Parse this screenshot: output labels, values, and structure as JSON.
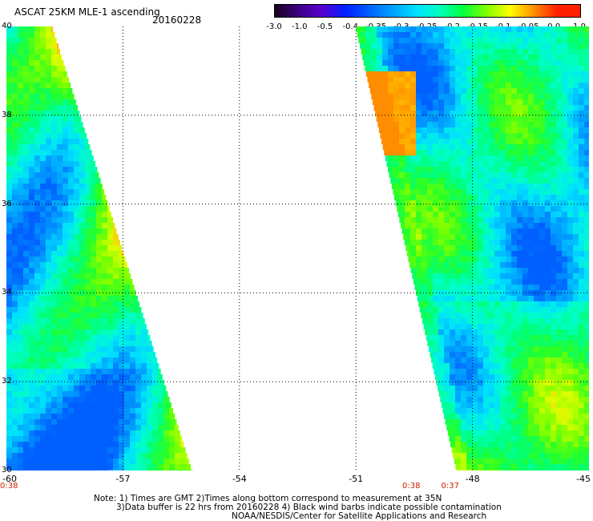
{
  "header": {
    "title": "ASCAT 25KM MLE-1 ascending",
    "date": "20160228"
  },
  "colorbar": {
    "ticks": [
      "-3.0",
      "-1.0",
      "-0.5",
      "-0.4",
      "-0.35",
      "-0.3",
      "-0.25",
      "-0.2",
      "-0.15",
      "-0.1",
      "-0.05",
      "0.0",
      "1.0"
    ],
    "colors": [
      "#1a0020",
      "#3a0080",
      "#5a00d0",
      "#0020ff",
      "#0060ff",
      "#00a0ff",
      "#00e0ff",
      "#00ffc0",
      "#00ff40",
      "#80ff00",
      "#ffff00",
      "#ff9000",
      "#ff2000"
    ]
  },
  "map": {
    "lat_labels": [
      "40",
      "38",
      "36",
      "34",
      "32",
      "30"
    ],
    "lon_labels": [
      "-60",
      "-57",
      "-54",
      "-51",
      "-48",
      "-45"
    ],
    "time_labels": [
      {
        "text": "0:38",
        "lon": -60
      },
      {
        "text": "0:38",
        "lon": -49.6
      },
      {
        "text": "0:37",
        "lon": -48.6
      }
    ],
    "swath_left": "west swath (lon -60 to -55.2)",
    "swath_right": "east swath (lon -50.4 to -45)"
  },
  "footer": {
    "note_line1": "Note: 1) Times are GMT 2)Times along bottom correspond to measurement at 35N",
    "note_line2": "3)Data buffer is 22 hrs from 20160228 4) Black wind barbs indicate possible contamination",
    "credit": "NOAA/NESDIS/Center for Satellite Applications and Research"
  }
}
